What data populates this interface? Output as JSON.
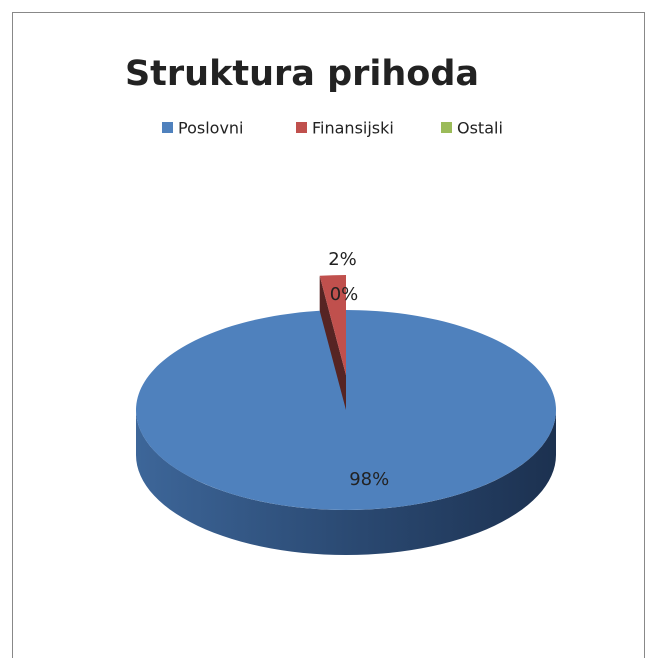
{
  "chart_data": {
    "type": "pie3d",
    "title": "Struktura prihoda",
    "categories": [
      "Poslovni",
      "Finansijski",
      "Ostali"
    ],
    "values": [
      98,
      2,
      0
    ],
    "value_labels": [
      "98%",
      "2%",
      "0%"
    ],
    "colors": [
      "#4f81bd",
      "#c0504d",
      "#9bbb59"
    ],
    "exploded": [
      false,
      true,
      false
    ],
    "legend": "top"
  }
}
